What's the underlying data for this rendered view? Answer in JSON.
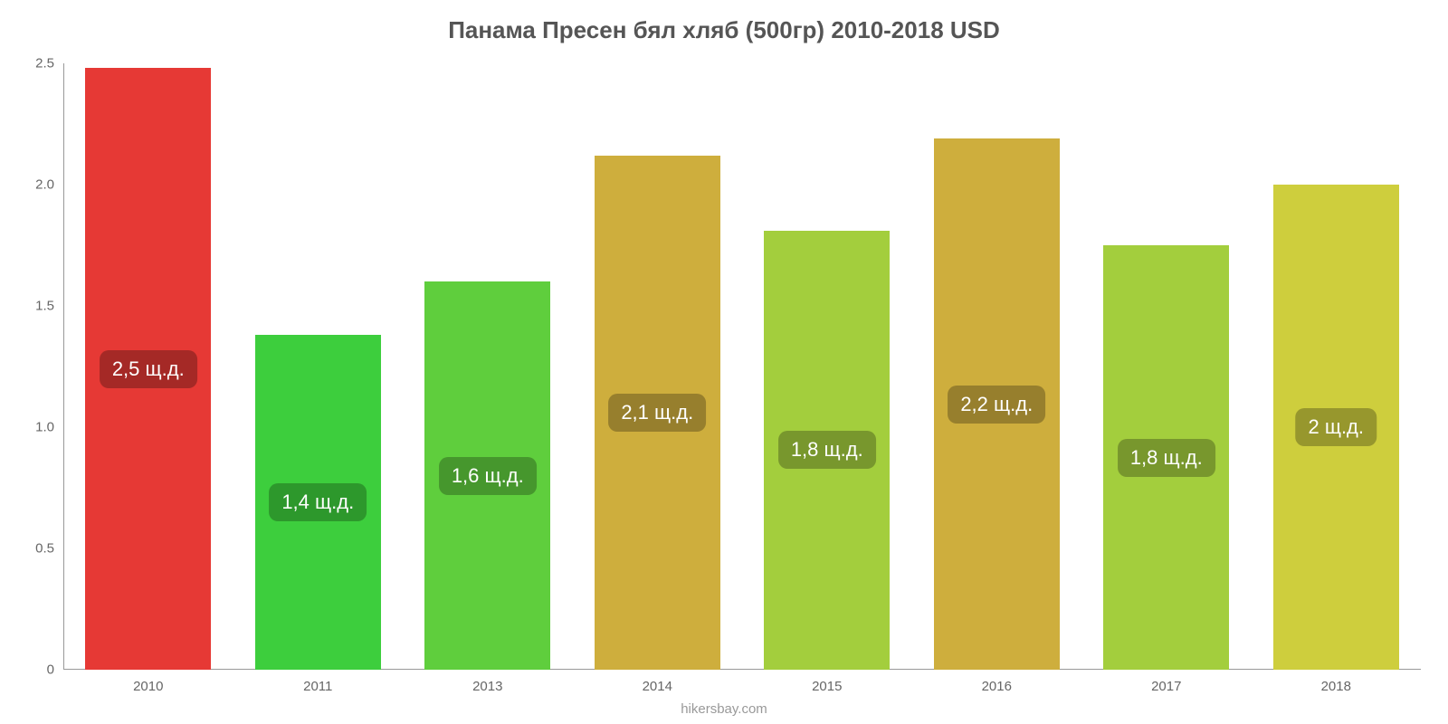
{
  "chart": {
    "type": "bar",
    "title": "Панама Пресен бял хляб (500гр) 2010-2018 USD",
    "title_fontsize": 26,
    "title_color": "#555555",
    "source": "hikersbay.com",
    "background_color": "#ffffff",
    "axis_color": "#999999",
    "tick_label_color": "#666666",
    "tick_fontsize": 15,
    "value_label_fontsize": 22,
    "value_label_text_color": "#ffffff",
    "bar_width": 0.74,
    "ylim": [
      0,
      2.5
    ],
    "yticks": [
      {
        "v": 0,
        "label": "0"
      },
      {
        "v": 0.5,
        "label": "0.5"
      },
      {
        "v": 1.0,
        "label": "1.0"
      },
      {
        "v": 1.5,
        "label": "1.5"
      },
      {
        "v": 2.0,
        "label": "2.0"
      },
      {
        "v": 2.5,
        "label": "2.5"
      }
    ],
    "categories": [
      "2010",
      "2011",
      "2013",
      "2014",
      "2015",
      "2016",
      "2017",
      "2018"
    ],
    "values": [
      2.48,
      1.38,
      1.6,
      2.12,
      1.81,
      2.19,
      1.75,
      2.0
    ],
    "value_labels": [
      "2,5 щ.д.",
      "1,4 щ.д.",
      "1,6 щ.д.",
      "2,1 щ.д.",
      "1,8 щ.д.",
      "2,2 щ.д.",
      "1,8 щ.д.",
      "2 щ.д."
    ],
    "bar_colors": [
      "#e63935",
      "#3dce3d",
      "#5fce3d",
      "#ceae3d",
      "#a3ce3d",
      "#ceae3d",
      "#a3ce3d",
      "#cece3d"
    ],
    "value_label_bg_colors": [
      "#a52926",
      "#2d982c",
      "#46972d",
      "#977f2d",
      "#78972d",
      "#977f2d",
      "#78972d",
      "#97972d"
    ]
  }
}
